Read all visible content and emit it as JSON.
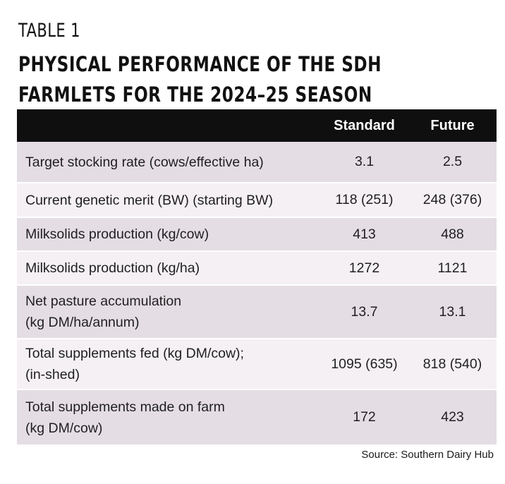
{
  "table_label": "TABLE 1",
  "title_lines": [
    "PHYSICAL PERFORMANCE OF THE SDH",
    "FARMLETS FOR THE 2024–25 SEASON"
  ],
  "columns": [
    "",
    "Standard",
    "Future"
  ],
  "rows": [
    {
      "metric_lines": [
        "Target stocking rate (cows/effective ha)"
      ],
      "standard": "3.1",
      "future": "2.5"
    },
    {
      "metric_lines": [
        "Current genetic merit (BW) (starting BW)"
      ],
      "standard": "118 (251)",
      "future": "248 (376)"
    },
    {
      "metric_lines": [
        "Milksolids production (kg/cow)"
      ],
      "standard": "413",
      "future": "488"
    },
    {
      "metric_lines": [
        "Milksolids production (kg/ha)"
      ],
      "standard": "1272",
      "future": "1121"
    },
    {
      "metric_lines": [
        "Net pasture accumulation",
        "(kg DM/ha/annum)"
      ],
      "standard": "13.7",
      "future": "13.1"
    },
    {
      "metric_lines": [
        "Total supplements fed (kg DM/cow);",
        "(in-shed)"
      ],
      "standard": "1095 (635)",
      "future": "818 (540)"
    },
    {
      "metric_lines": [
        "Total supplements made on farm",
        "(kg DM/cow)"
      ],
      "standard": "172",
      "future": "423"
    }
  ],
  "source": "Source: Southern Dairy Hub",
  "colors": {
    "header_bg": "#0f0f0f",
    "row_shade": "#e4dde4",
    "row_plain": "#f4f0f4"
  }
}
